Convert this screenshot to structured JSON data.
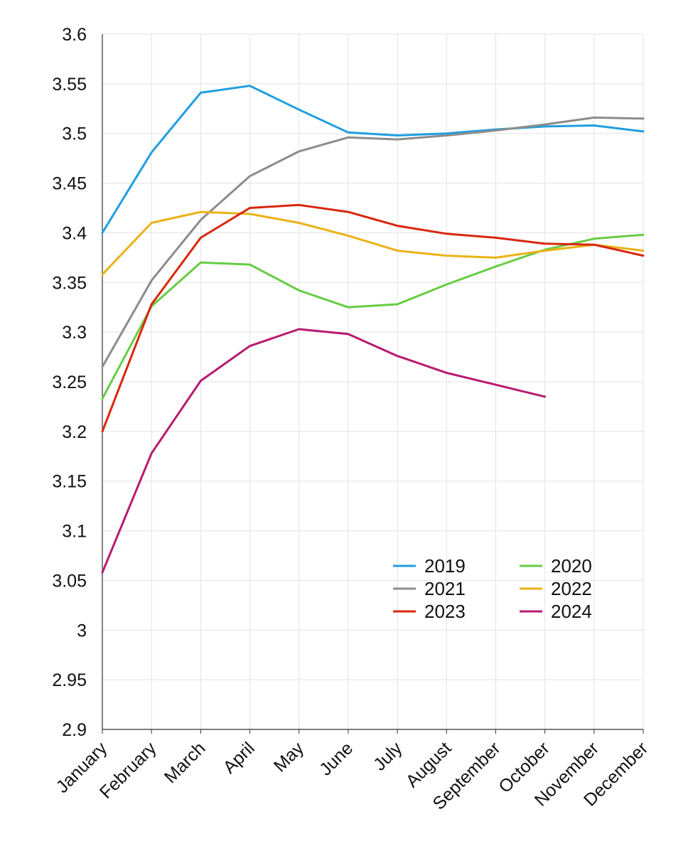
{
  "chart_data": {
    "type": "line",
    "title": "",
    "xlabel": "",
    "ylabel": "",
    "categories": [
      "January",
      "February",
      "March",
      "April",
      "May",
      "June",
      "July",
      "August",
      "September",
      "October",
      "November",
      "December"
    ],
    "ylim": [
      2.9,
      3.6
    ],
    "yticks": [
      "3.6",
      "3.55",
      "3.5",
      "3.45",
      "3.4",
      "3.35",
      "3.3",
      "3.25",
      "3.2",
      "3.15",
      "3.1",
      "3.05",
      "3",
      "2.95",
      "2.9"
    ],
    "grid": true,
    "legend_position": "lower-right",
    "series": [
      {
        "name": "2019",
        "color": "#1f9ee0",
        "values": [
          3.4,
          3.481,
          3.541,
          3.548,
          3.524,
          3.501,
          3.498,
          3.5,
          3.504,
          3.507,
          3.508,
          3.502
        ]
      },
      {
        "name": "2020",
        "color": "#66cc44",
        "values": [
          3.233,
          3.326,
          3.37,
          3.368,
          3.342,
          3.325,
          3.328,
          3.348,
          3.366,
          3.383,
          3.394,
          3.398
        ]
      },
      {
        "name": "2021",
        "color": "#8c8c8c",
        "values": [
          3.265,
          3.352,
          3.413,
          3.457,
          3.482,
          3.496,
          3.494,
          3.498,
          3.503,
          3.509,
          3.516,
          3.515
        ]
      },
      {
        "name": "2022",
        "color": "#eab216",
        "values": [
          3.358,
          3.41,
          3.421,
          3.419,
          3.41,
          3.397,
          3.382,
          3.377,
          3.375,
          3.382,
          3.388,
          3.382
        ]
      },
      {
        "name": "2023",
        "color": "#d9260f",
        "values": [
          3.2,
          3.328,
          3.395,
          3.425,
          3.428,
          3.421,
          3.407,
          3.399,
          3.395,
          3.389,
          3.388,
          3.377
        ]
      },
      {
        "name": "2024",
        "color": "#b81a72",
        "values": [
          3.058,
          3.178,
          3.251,
          3.286,
          3.303,
          3.298,
          3.276,
          3.259,
          3.247,
          3.235,
          null,
          null
        ]
      }
    ]
  }
}
